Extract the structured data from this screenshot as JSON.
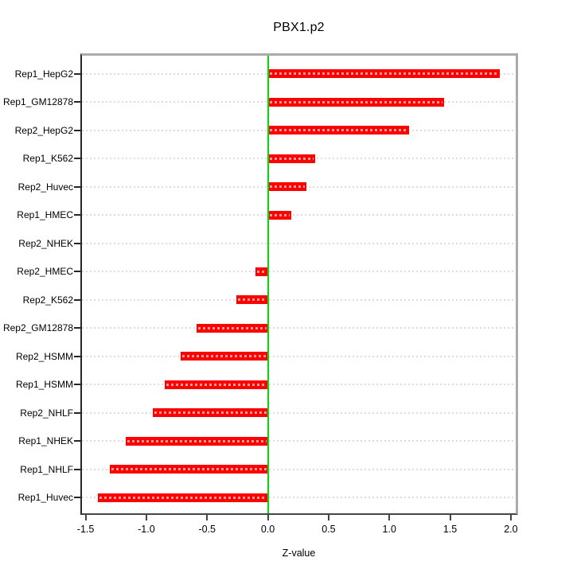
{
  "chart_data": {
    "type": "bar",
    "orientation": "horizontal",
    "title": "PBX1.p2",
    "xlabel": "Z-value",
    "ylabel": "",
    "categories": [
      "Rep1_HepG2",
      "Rep1_GM12878",
      "Rep2_HepG2",
      "Rep1_K562",
      "Rep2_Huvec",
      "Rep1_HMEC",
      "Rep2_NHEK",
      "Rep2_HMEC",
      "Rep2_K562",
      "Rep2_GM12878",
      "Rep2_HSMM",
      "Rep1_HSMM",
      "Rep2_NHLF",
      "Rep1_NHEK",
      "Rep1_NHLF",
      "Rep1_Huvec"
    ],
    "values": [
      1.91,
      1.45,
      1.16,
      0.39,
      0.32,
      0.19,
      0.01,
      -0.1,
      -0.26,
      -0.59,
      -0.72,
      -0.85,
      -0.95,
      -1.17,
      -1.3,
      -1.4
    ],
    "xlim": [
      -1.53,
      2.04
    ],
    "x_ticks": [
      -1.5,
      -1.0,
      -0.5,
      0.0,
      0.5,
      1.0,
      1.5,
      2.0
    ],
    "x_tick_labels": [
      "-1.5",
      "-1.0",
      "-0.5",
      "0.0",
      "0.5",
      "1.0",
      "1.5",
      "2.0"
    ],
    "grid": true,
    "legend": "none",
    "zero_reference_line": 0.0,
    "colors": {
      "bar": "#ff0000",
      "bar_inner_dash": "#ffb3b3",
      "zero_line": "#00dc00",
      "grid": "#dcdcdc",
      "box_top_right": "#ababab",
      "axis": "#262626",
      "text": "#000000"
    }
  }
}
